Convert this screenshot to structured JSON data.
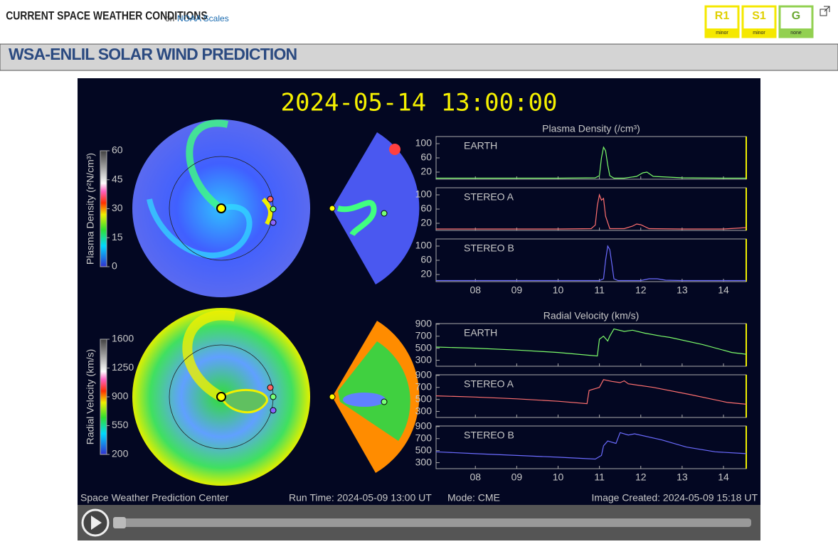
{
  "header": {
    "title": "CURRENT SPACE WEATHER CONDITIONS",
    "connector": "on",
    "link": "NOAA Scales"
  },
  "scales": [
    {
      "label": "R1",
      "level": "minor",
      "color": "#f5e800"
    },
    {
      "label": "S1",
      "level": "minor",
      "color": "#f5e800"
    },
    {
      "label": "G",
      "level": "none",
      "color": "#92d050"
    }
  ],
  "page_title": "WSA-ENLIL SOLAR WIND PREDICTION",
  "animation": {
    "timestamp": "2024-05-14 13:00:00",
    "colorbars": [
      {
        "label": "Plasma Density (r²N/cm³)",
        "ticks": [
          0,
          15,
          30,
          45,
          60
        ]
      },
      {
        "label": "Radial Velocity (km/s)",
        "ticks": [
          200,
          550,
          900,
          1250,
          1600
        ]
      }
    ],
    "footer": {
      "center": "Space Weather Prediction Center",
      "run_time": "Run Time: 2024-05-09 13:00 UT",
      "mode": "Mode: CME",
      "created": "Image Created: 2024-05-09 15:18 UT"
    }
  },
  "chart_data": [
    {
      "type": "line",
      "title": "Plasma Density (/cm³)",
      "xlim": [
        7.05,
        14.55
      ],
      "ylim": [
        0,
        120
      ],
      "yticks": [
        20,
        60,
        100
      ],
      "xticks": [
        {
          "value": 8,
          "label": "08"
        },
        {
          "value": 9,
          "label": "09"
        },
        {
          "value": 10,
          "label": "10"
        },
        {
          "value": 11,
          "label": "11"
        },
        {
          "value": 12,
          "label": "12"
        },
        {
          "value": 13,
          "label": "13"
        },
        {
          "value": 14,
          "label": "14"
        }
      ],
      "series": [
        {
          "name": "EARTH",
          "color": "#7cfc6a",
          "x": [
            7.05,
            8,
            9,
            10,
            10.9,
            11.0,
            11.05,
            11.1,
            11.15,
            11.2,
            11.25,
            11.35,
            11.6,
            11.9,
            12.05,
            12.15,
            12.3,
            13,
            14,
            14.55
          ],
          "values": [
            3,
            3,
            3,
            3,
            4,
            10,
            60,
            90,
            80,
            40,
            10,
            3,
            3,
            8,
            18,
            20,
            8,
            4,
            3,
            3
          ]
        },
        {
          "name": "STEREO A",
          "color": "#ff6f6f",
          "x": [
            7.05,
            8,
            9,
            10,
            10.8,
            10.9,
            10.95,
            11.0,
            11.05,
            11.1,
            11.15,
            11.25,
            11.6,
            11.8,
            11.9,
            12.0,
            12.2,
            13,
            14,
            14.3,
            14.55
          ],
          "values": [
            4,
            4,
            4,
            4,
            5,
            15,
            70,
            100,
            85,
            90,
            40,
            5,
            5,
            12,
            18,
            16,
            5,
            4,
            4,
            6,
            8
          ]
        },
        {
          "name": "STEREO B",
          "color": "#6b6bff",
          "x": [
            7.05,
            8,
            9,
            10,
            11,
            11.1,
            11.15,
            11.2,
            11.25,
            11.3,
            11.35,
            11.45,
            12,
            12.2,
            12.4,
            12.6,
            13,
            14,
            14.55
          ],
          "values": [
            3,
            3,
            3,
            3,
            3,
            8,
            60,
            100,
            90,
            50,
            8,
            3,
            3,
            8,
            8,
            4,
            3,
            3,
            3
          ]
        }
      ]
    },
    {
      "type": "line",
      "title": "Radial Velocity (km/s)",
      "xlim": [
        7.05,
        14.55
      ],
      "ylim": [
        200,
        910
      ],
      "yticks": [
        300,
        500,
        700,
        900
      ],
      "xticks": [
        {
          "value": 8,
          "label": "08"
        },
        {
          "value": 9,
          "label": "09"
        },
        {
          "value": 10,
          "label": "10"
        },
        {
          "value": 11,
          "label": "11"
        },
        {
          "value": 12,
          "label": "12"
        },
        {
          "value": 13,
          "label": "13"
        },
        {
          "value": 14,
          "label": "14"
        }
      ],
      "series": [
        {
          "name": "EARTH",
          "color": "#7cfc6a",
          "x": [
            7.05,
            8,
            9,
            10,
            10.95,
            11.0,
            11.1,
            11.2,
            11.25,
            11.35,
            11.6,
            11.8,
            12.1,
            12.5,
            12.7,
            13.5,
            14.2,
            14.55
          ],
          "values": [
            520,
            500,
            470,
            430,
            370,
            650,
            700,
            620,
            700,
            820,
            780,
            800,
            750,
            700,
            680,
            560,
            430,
            400
          ]
        },
        {
          "name": "STEREO A",
          "color": "#ff6f6f",
          "x": [
            7.05,
            8,
            9,
            10,
            10.7,
            10.75,
            10.9,
            11.0,
            11.1,
            11.3,
            11.5,
            11.6,
            11.7,
            12.3,
            13.2,
            14.1,
            14.55
          ],
          "values": [
            560,
            540,
            510,
            470,
            430,
            650,
            680,
            700,
            830,
            800,
            780,
            810,
            760,
            700,
            580,
            450,
            420
          ]
        },
        {
          "name": "STEREO B",
          "color": "#6b6bff",
          "x": [
            7.05,
            8,
            9,
            10,
            10.9,
            11.05,
            11.1,
            11.2,
            11.4,
            11.5,
            11.7,
            11.85,
            12.5,
            13.1,
            13.8,
            14.55
          ],
          "values": [
            480,
            450,
            420,
            390,
            360,
            420,
            580,
            660,
            620,
            800,
            760,
            780,
            680,
            560,
            480,
            450
          ]
        }
      ]
    }
  ]
}
